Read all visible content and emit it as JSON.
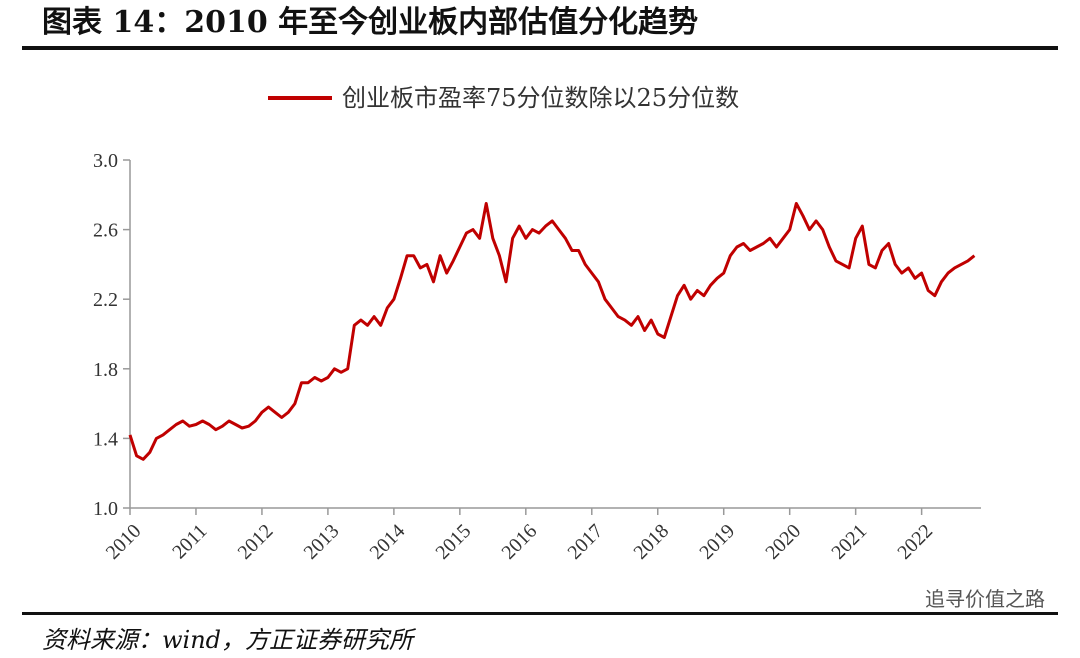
{
  "chart_data": {
    "type": "line",
    "title": "图表 14：2010 年至今创业板内部估值分化趋势",
    "source": "资料来源：wind，方正证券研究所",
    "watermark": "追寻价值之路",
    "legend": "top",
    "xlim": [
      2010,
      2022.9
    ],
    "xticks": [
      2010,
      2011,
      2012,
      2013,
      2014,
      2015,
      2016,
      2017,
      2018,
      2019,
      2020,
      2021,
      2022
    ],
    "ylim": [
      1,
      3
    ],
    "yticks": [
      {
        "value": 1,
        "label": "1.0"
      },
      1.4,
      1.8,
      2.2,
      2.6,
      {
        "value": 3,
        "label": "3.0"
      }
    ],
    "x": [
      2010.0,
      2010.1,
      2010.2,
      2010.3,
      2010.4,
      2010.5,
      2010.6,
      2010.7,
      2010.8,
      2010.9,
      2011.0,
      2011.1,
      2011.2,
      2011.3,
      2011.4,
      2011.5,
      2011.6,
      2011.7,
      2011.8,
      2011.9,
      2012.0,
      2012.1,
      2012.2,
      2012.3,
      2012.4,
      2012.5,
      2012.6,
      2012.7,
      2012.8,
      2012.9,
      2013.0,
      2013.1,
      2013.2,
      2013.3,
      2013.4,
      2013.5,
      2013.6,
      2013.7,
      2013.8,
      2013.9,
      2014.0,
      2014.1,
      2014.2,
      2014.3,
      2014.4,
      2014.5,
      2014.6,
      2014.7,
      2014.8,
      2014.9,
      2015.0,
      2015.1,
      2015.2,
      2015.3,
      2015.4,
      2015.5,
      2015.6,
      2015.7,
      2015.8,
      2015.9,
      2016.0,
      2016.1,
      2016.2,
      2016.3,
      2016.4,
      2016.5,
      2016.6,
      2016.7,
      2016.8,
      2016.9,
      2017.0,
      2017.1,
      2017.2,
      2017.3,
      2017.4,
      2017.5,
      2017.6,
      2017.7,
      2017.8,
      2017.9,
      2018.0,
      2018.1,
      2018.2,
      2018.3,
      2018.4,
      2018.5,
      2018.6,
      2018.7,
      2018.8,
      2018.9,
      2019.0,
      2019.1,
      2019.2,
      2019.3,
      2019.4,
      2019.5,
      2019.6,
      2019.7,
      2019.8,
      2019.9,
      2020.0,
      2020.1,
      2020.2,
      2020.3,
      2020.4,
      2020.5,
      2020.6,
      2020.7,
      2020.8,
      2020.9,
      2021.0,
      2021.1,
      2021.2,
      2021.3,
      2021.4,
      2021.5,
      2021.6,
      2021.7,
      2021.8,
      2021.9,
      2022.0,
      2022.1,
      2022.2,
      2022.3,
      2022.4,
      2022.5,
      2022.6,
      2022.7,
      2022.8
    ],
    "series": [
      {
        "name": "创业板市盈率75分位数除以25分位数",
        "color": "#c00000",
        "values": [
          1.42,
          1.3,
          1.28,
          1.32,
          1.4,
          1.42,
          1.45,
          1.48,
          1.5,
          1.47,
          1.48,
          1.5,
          1.48,
          1.45,
          1.47,
          1.5,
          1.48,
          1.46,
          1.47,
          1.5,
          1.55,
          1.58,
          1.55,
          1.52,
          1.55,
          1.6,
          1.72,
          1.72,
          1.75,
          1.73,
          1.75,
          1.8,
          1.78,
          1.8,
          2.05,
          2.08,
          2.05,
          2.1,
          2.05,
          2.15,
          2.2,
          2.32,
          2.45,
          2.45,
          2.38,
          2.4,
          2.3,
          2.45,
          2.35,
          2.42,
          2.5,
          2.58,
          2.6,
          2.55,
          2.75,
          2.55,
          2.45,
          2.3,
          2.55,
          2.62,
          2.55,
          2.6,
          2.58,
          2.62,
          2.65,
          2.6,
          2.55,
          2.48,
          2.48,
          2.4,
          2.35,
          2.3,
          2.2,
          2.15,
          2.1,
          2.08,
          2.05,
          2.1,
          2.02,
          2.08,
          2.0,
          1.98,
          2.1,
          2.22,
          2.28,
          2.2,
          2.25,
          2.22,
          2.28,
          2.32,
          2.35,
          2.45,
          2.5,
          2.52,
          2.48,
          2.5,
          2.52,
          2.55,
          2.5,
          2.55,
          2.6,
          2.75,
          2.68,
          2.6,
          2.65,
          2.6,
          2.5,
          2.42,
          2.4,
          2.38,
          2.55,
          2.62,
          2.4,
          2.38,
          2.48,
          2.52,
          2.4,
          2.35,
          2.38,
          2.32,
          2.35,
          2.25,
          2.22,
          2.3,
          2.35,
          2.38,
          2.4,
          2.42,
          2.45
        ]
      }
    ]
  }
}
